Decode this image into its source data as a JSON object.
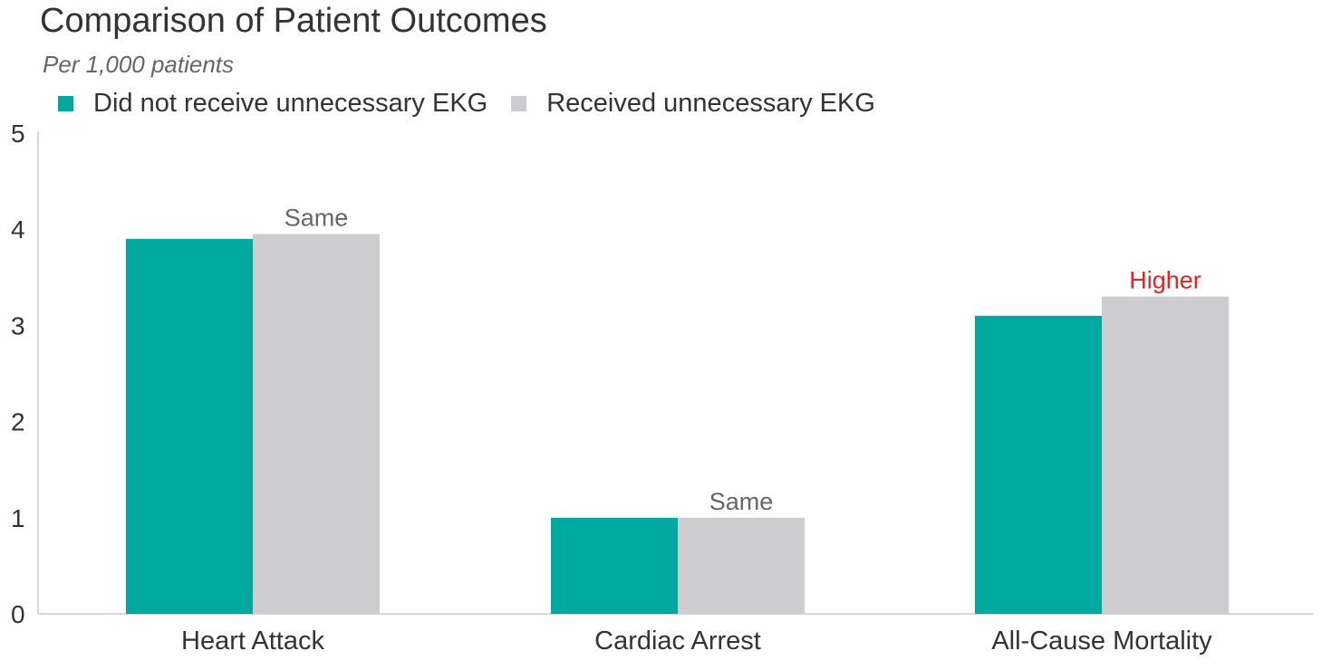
{
  "chart_data": {
    "type": "bar",
    "title": "Comparison of Patient Outcomes",
    "subtitle": "Per 1,000 patients",
    "xlabel": "",
    "ylabel": "",
    "ylim": [
      0,
      5
    ],
    "yticks": [
      0,
      1,
      2,
      3,
      4,
      5
    ],
    "categories": [
      "Heart Attack",
      "Cardiac Arrest",
      "All-Cause Mortality"
    ],
    "series": [
      {
        "name": "Did not receive unnecessary EKG",
        "color": "#00a9a0",
        "values": [
          3.9,
          1.0,
          3.1
        ]
      },
      {
        "name": "Received unnecessary EKG",
        "color": "#cdcccf",
        "values": [
          3.95,
          1.0,
          3.3
        ]
      }
    ],
    "annotations": [
      {
        "category": "Heart Attack",
        "text": "Same",
        "color": "#666666"
      },
      {
        "category": "Cardiac Arrest",
        "text": "Same",
        "color": "#666666"
      },
      {
        "category": "All-Cause Mortality",
        "text": "Higher",
        "color": "#e8231f"
      }
    ],
    "grid": false,
    "legend_position": "top-left"
  }
}
